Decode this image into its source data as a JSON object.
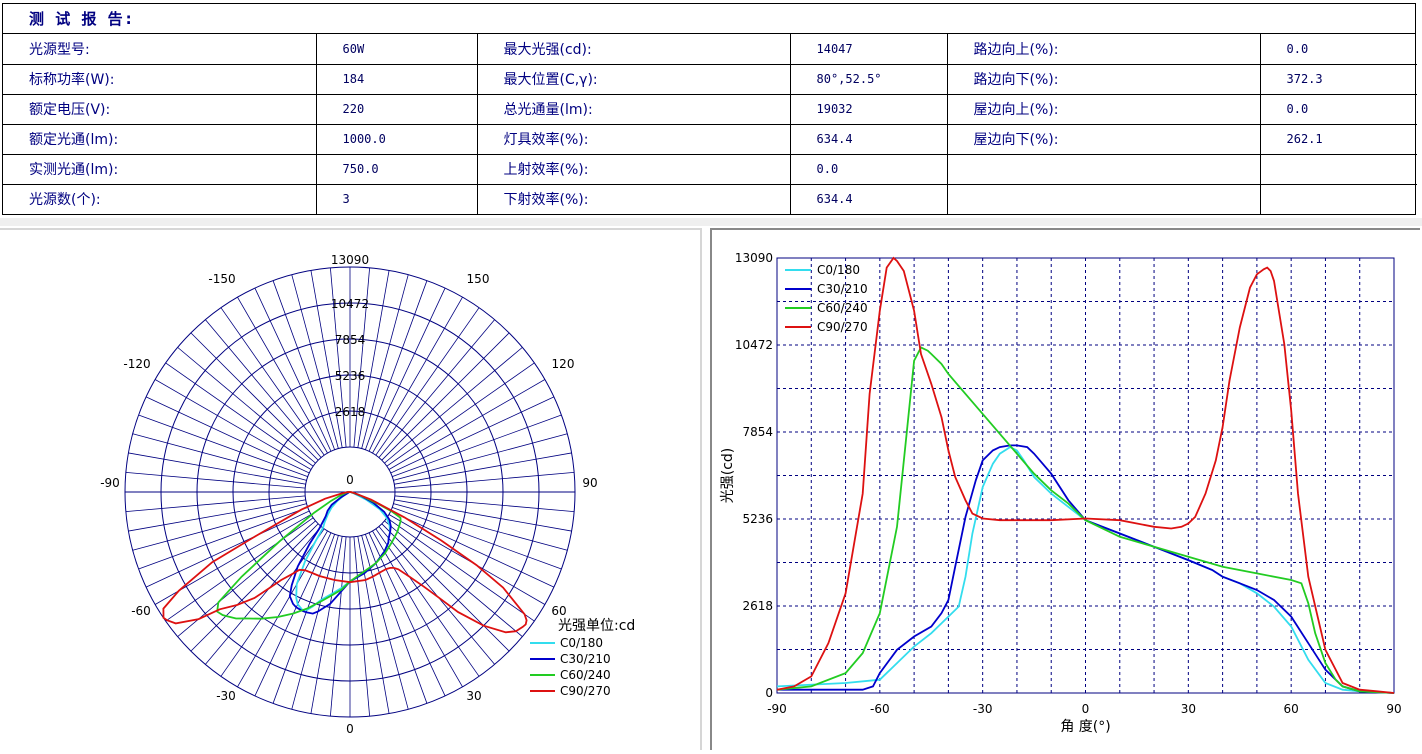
{
  "report": {
    "title": "测 试 报 告:",
    "rows": [
      [
        {
          "label": "光源型号:",
          "value": "60W"
        },
        {
          "label": "最大光强(cd):",
          "value": "14047"
        },
        {
          "label": "路边向上(%):",
          "value": "0.0"
        }
      ],
      [
        {
          "label": "标称功率(W):",
          "value": "184"
        },
        {
          "label": "最大位置(C,γ):",
          "value": "80°,52.5°"
        },
        {
          "label": "路边向下(%):",
          "value": "372.3"
        }
      ],
      [
        {
          "label": "额定电压(V):",
          "value": "220"
        },
        {
          "label": "总光通量(lm):",
          "value": "19032"
        },
        {
          "label": "屋边向上(%):",
          "value": "0.0"
        }
      ],
      [
        {
          "label": "额定光通(lm):",
          "value": "1000.0"
        },
        {
          "label": "灯具效率(%):",
          "value": "634.4"
        },
        {
          "label": "屋边向下(%):",
          "value": "262.1"
        }
      ],
      [
        {
          "label": "实测光通(lm):",
          "value": "750.0"
        },
        {
          "label": "上射效率(%):",
          "value": "0.0"
        },
        {
          "label": "",
          "value": ""
        }
      ],
      [
        {
          "label": "光源数(个):",
          "value": "3"
        },
        {
          "label": "下射效率(%):",
          "value": "634.4"
        },
        {
          "label": "",
          "value": ""
        }
      ]
    ]
  },
  "colors": {
    "c0": "#33ddee",
    "c30": "#0000cc",
    "c60": "#22cc22",
    "c90": "#dd1111",
    "grid": "#000080"
  },
  "chart_data": [
    {
      "type": "polar",
      "radial_ticks": [
        0,
        2618,
        5236,
        7854,
        10472,
        13090
      ],
      "angle_labels": [
        "0",
        "30",
        "60",
        "90",
        "120",
        "150",
        "-150",
        "-120",
        "-90",
        "-60",
        "-30"
      ],
      "legend_title": "光强单位:cd",
      "legend_placement": "bottom-right",
      "series_names": [
        "C0/180",
        "C30/210",
        "C60/240",
        "C90/270"
      ]
    },
    {
      "type": "line",
      "xlabel": "角 度(°)",
      "ylabel": "光强(cd)",
      "xlim": [
        -90,
        90
      ],
      "ylim": [
        0,
        13090
      ],
      "xticks": [
        -90,
        -60,
        -30,
        0,
        30,
        60,
        90
      ],
      "yticks": [
        0,
        2618,
        5236,
        7854,
        10472,
        13090
      ],
      "legend_placement": "top-left",
      "series": [
        {
          "name": "C0/180",
          "color": "#33ddee",
          "x": [
            -90,
            -70,
            -60,
            -55,
            -50,
            -45,
            -40,
            -37,
            -35,
            -33,
            -30,
            -27,
            -25,
            -22,
            -20,
            -18,
            -15,
            -10,
            -5,
            0,
            10,
            20,
            30,
            37,
            40,
            45,
            50,
            55,
            60,
            65,
            70,
            75,
            80,
            90
          ],
          "y": [
            200,
            300,
            400,
            900,
            1400,
            1800,
            2300,
            2600,
            3500,
            4800,
            6200,
            6900,
            7200,
            7400,
            7300,
            7000,
            6500,
            6000,
            5600,
            5200,
            4800,
            4400,
            4000,
            3700,
            3500,
            3300,
            3000,
            2600,
            2000,
            1000,
            300,
            100,
            50,
            0
          ]
        },
        {
          "name": "C30/210",
          "color": "#0000cc",
          "x": [
            -90,
            -65,
            -62,
            -60,
            -55,
            -50,
            -45,
            -42,
            -40,
            -38,
            -35,
            -32,
            -30,
            -27,
            -25,
            -22,
            -20,
            -17,
            -15,
            -10,
            -5,
            0,
            10,
            20,
            30,
            37,
            40,
            45,
            50,
            55,
            60,
            65,
            70,
            75,
            80,
            90
          ],
          "y": [
            100,
            100,
            200,
            600,
            1300,
            1700,
            2000,
            2400,
            2800,
            3800,
            5300,
            6400,
            7000,
            7300,
            7400,
            7450,
            7450,
            7400,
            7200,
            6600,
            5800,
            5200,
            4800,
            4400,
            4000,
            3700,
            3500,
            3300,
            3100,
            2800,
            2300,
            1500,
            700,
            200,
            50,
            0
          ]
        },
        {
          "name": "C60/240",
          "color": "#22cc22",
          "x": [
            -90,
            -80,
            -70,
            -65,
            -60,
            -55,
            -52,
            -50,
            -48,
            -46,
            -45,
            -42,
            -40,
            -35,
            -30,
            -25,
            -20,
            -15,
            -10,
            -5,
            0,
            10,
            20,
            30,
            40,
            50,
            60,
            63,
            65,
            67,
            70,
            73,
            75,
            80,
            90
          ],
          "y": [
            100,
            200,
            600,
            1200,
            2400,
            5000,
            8000,
            10000,
            10400,
            10300,
            10200,
            9900,
            9600,
            9000,
            8400,
            7800,
            7200,
            6600,
            6100,
            5700,
            5200,
            4700,
            4400,
            4100,
            3800,
            3600,
            3400,
            3300,
            2700,
            1800,
            900,
            400,
            200,
            50,
            0
          ]
        },
        {
          "name": "C90/270",
          "color": "#dd1111",
          "x": [
            -90,
            -85,
            -80,
            -75,
            -70,
            -65,
            -63,
            -60,
            -58,
            -56,
            -55,
            -53,
            -50,
            -48,
            -45,
            -42,
            -40,
            -38,
            -35,
            -33,
            -30,
            -25,
            -20,
            -10,
            0,
            10,
            15,
            20,
            25,
            28,
            30,
            32,
            35,
            38,
            40,
            42,
            45,
            48,
            50,
            52,
            53,
            54,
            55,
            58,
            60,
            62,
            65,
            70,
            75,
            80,
            85,
            90
          ],
          "y": [
            100,
            200,
            500,
            1500,
            3000,
            6000,
            9000,
            11500,
            12800,
            13090,
            13000,
            12700,
            11500,
            10200,
            9300,
            8300,
            7300,
            6500,
            5800,
            5400,
            5250,
            5200,
            5200,
            5200,
            5250,
            5200,
            5100,
            5000,
            4950,
            5000,
            5100,
            5300,
            6000,
            7000,
            8000,
            9400,
            11000,
            12200,
            12600,
            12750,
            12800,
            12700,
            12400,
            10500,
            8500,
            6000,
            3500,
            1300,
            300,
            100,
            50,
            0
          ]
        }
      ]
    }
  ]
}
